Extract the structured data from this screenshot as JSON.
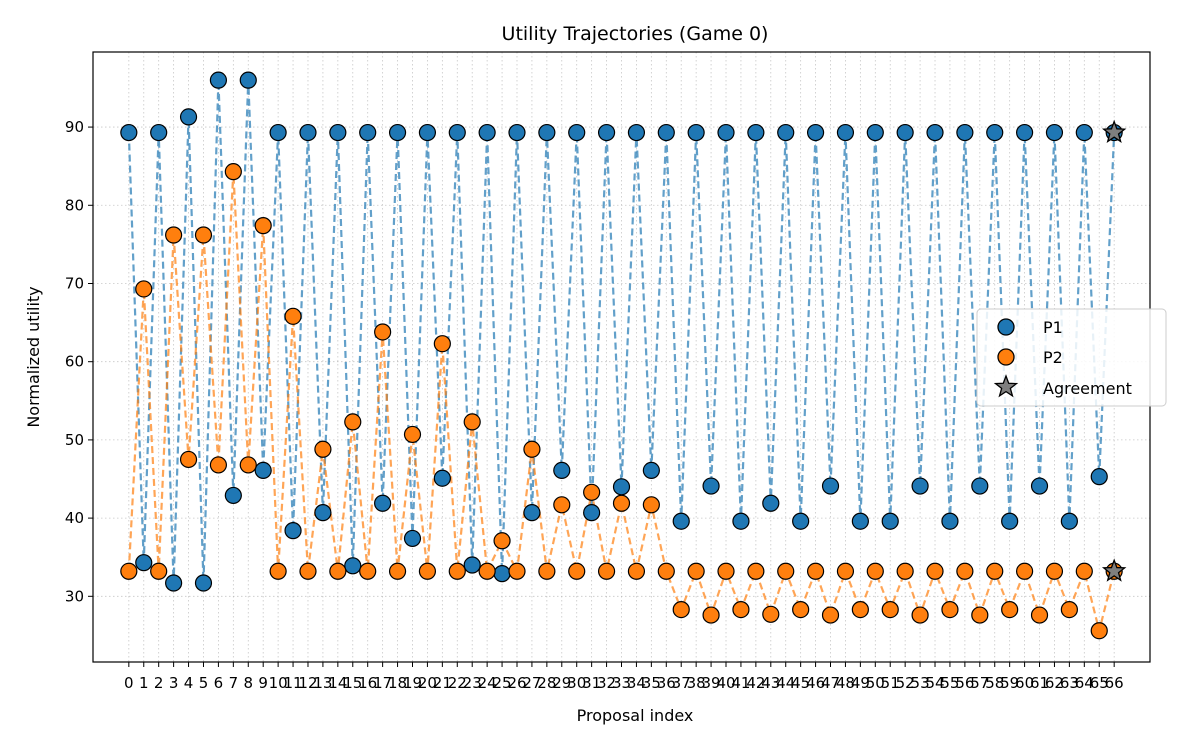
{
  "chart_data": {
    "type": "line",
    "title": "Utility Trajectories (Game 0)",
    "xlabel": "Proposal index",
    "ylabel": "Normalized utility",
    "xlim": [
      -2.4,
      68.4
    ],
    "ylim": [
      21.6,
      99.6
    ],
    "x_ticks": [
      0,
      1,
      2,
      3,
      4,
      5,
      6,
      7,
      8,
      9,
      10,
      11,
      12,
      13,
      14,
      15,
      16,
      17,
      18,
      19,
      20,
      21,
      22,
      23,
      24,
      25,
      26,
      27,
      28,
      29,
      30,
      31,
      32,
      33,
      34,
      35,
      36,
      37,
      38,
      39,
      40,
      41,
      42,
      43,
      44,
      45,
      46,
      47,
      48,
      49,
      50,
      51,
      52,
      53,
      54,
      55,
      56,
      57,
      58,
      59,
      60,
      61,
      62,
      63,
      64,
      65,
      66
    ],
    "y_ticks": [
      30,
      40,
      50,
      60,
      70,
      80,
      90
    ],
    "grid": true,
    "legend_position": "center-right",
    "x": [
      0,
      1,
      2,
      3,
      4,
      5,
      6,
      7,
      8,
      9,
      10,
      11,
      12,
      13,
      14,
      15,
      16,
      17,
      18,
      19,
      20,
      21,
      22,
      23,
      24,
      25,
      26,
      27,
      28,
      29,
      30,
      31,
      32,
      33,
      34,
      35,
      36,
      37,
      38,
      39,
      40,
      41,
      42,
      43,
      44,
      45,
      46,
      47,
      48,
      49,
      50,
      51,
      52,
      53,
      54,
      55,
      56,
      57,
      58,
      59,
      60,
      61,
      62,
      63,
      64,
      65,
      66
    ],
    "series": [
      {
        "name": "P1",
        "color": "#1f77b4",
        "values": [
          89.3,
          34.3,
          89.3,
          31.7,
          91.3,
          31.7,
          96.0,
          42.9,
          96.0,
          46.1,
          89.3,
          38.4,
          89.3,
          40.7,
          89.3,
          33.9,
          89.3,
          41.9,
          89.3,
          37.4,
          89.3,
          45.1,
          89.3,
          34.0,
          89.3,
          32.9,
          89.3,
          40.7,
          89.3,
          46.1,
          89.3,
          40.7,
          89.3,
          44.0,
          89.3,
          46.1,
          89.3,
          39.6,
          89.3,
          44.1,
          89.3,
          39.6,
          89.3,
          41.9,
          89.3,
          39.6,
          89.3,
          44.1,
          89.3,
          39.6,
          89.3,
          39.6,
          89.3,
          44.1,
          89.3,
          39.6,
          89.3,
          44.1,
          89.3,
          39.6,
          89.3,
          44.1,
          89.3,
          39.6,
          89.3,
          45.3,
          89.3
        ]
      },
      {
        "name": "P2",
        "color": "#ff7f0e",
        "values": [
          33.2,
          69.3,
          33.2,
          76.2,
          47.5,
          76.2,
          46.8,
          84.3,
          46.8,
          77.4,
          33.2,
          65.8,
          33.2,
          48.8,
          33.2,
          52.3,
          33.2,
          63.8,
          33.2,
          50.7,
          33.2,
          62.3,
          33.2,
          52.3,
          33.2,
          37.1,
          33.2,
          48.8,
          33.2,
          41.7,
          33.2,
          43.3,
          33.2,
          41.9,
          33.2,
          41.7,
          33.2,
          28.3,
          33.2,
          27.6,
          33.2,
          28.3,
          33.2,
          27.7,
          33.2,
          28.3,
          33.2,
          27.6,
          33.2,
          28.3,
          33.2,
          28.3,
          33.2,
          27.6,
          33.2,
          28.3,
          33.2,
          27.6,
          33.2,
          28.3,
          33.2,
          27.6,
          33.2,
          28.3,
          33.2,
          25.6,
          33.2
        ]
      }
    ],
    "agreement": {
      "name": "Agreement",
      "x": 66,
      "p1": 89.3,
      "p2": 33.2,
      "color": "#7f7f7f"
    }
  }
}
